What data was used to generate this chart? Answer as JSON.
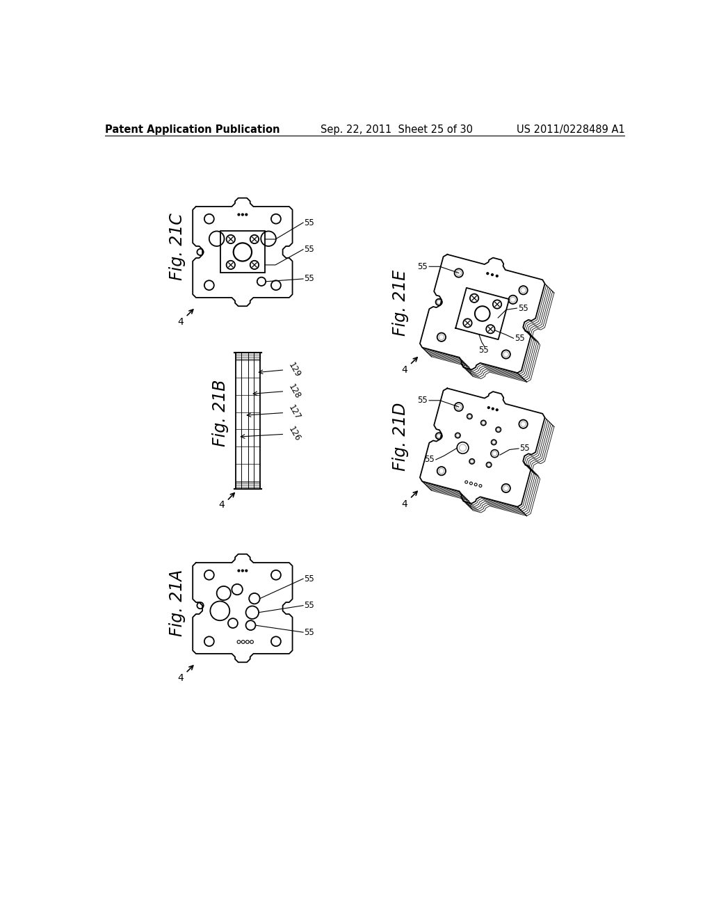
{
  "bg_color": "#ffffff",
  "header_left": "Patent Application Publication",
  "header_center": "Sep. 22, 2011  Sheet 25 of 30",
  "header_right": "US 2011/0228489 A1",
  "header_fontsize": 10.5,
  "fig_label_fontsize": 17,
  "anno_fontsize": 9,
  "line_color": "#000000",
  "line_width": 1.3
}
